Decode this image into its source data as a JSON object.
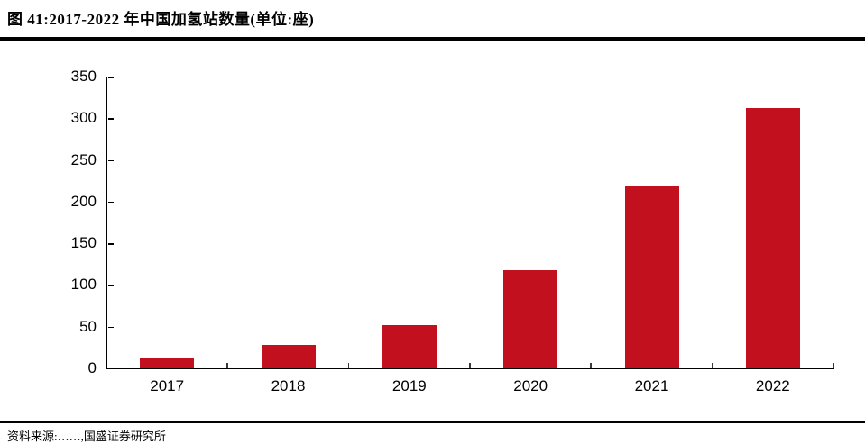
{
  "figure": {
    "title": "图 41:2017-2022 年中国加氢站数量(单位:座)",
    "source_note": "资料来源:……,国盛证券研究所"
  },
  "chart_data": {
    "type": "bar",
    "title": "2017-2022 年中国加氢站数量",
    "unit": "座",
    "categories": [
      "2017",
      "2018",
      "2019",
      "2020",
      "2021",
      "2022"
    ],
    "values": [
      12,
      28,
      52,
      118,
      218,
      312
    ],
    "xlabel": "",
    "ylabel": "",
    "ylim": [
      0,
      350
    ],
    "yticks": [
      0,
      50,
      100,
      150,
      200,
      250,
      300,
      350
    ],
    "grid": false,
    "legend": null,
    "bar_color": "#C2101E"
  },
  "colors": {
    "bar": "#C2101E",
    "axis": "#000000",
    "rule": "#000000",
    "source_text": "#9E3031"
  }
}
